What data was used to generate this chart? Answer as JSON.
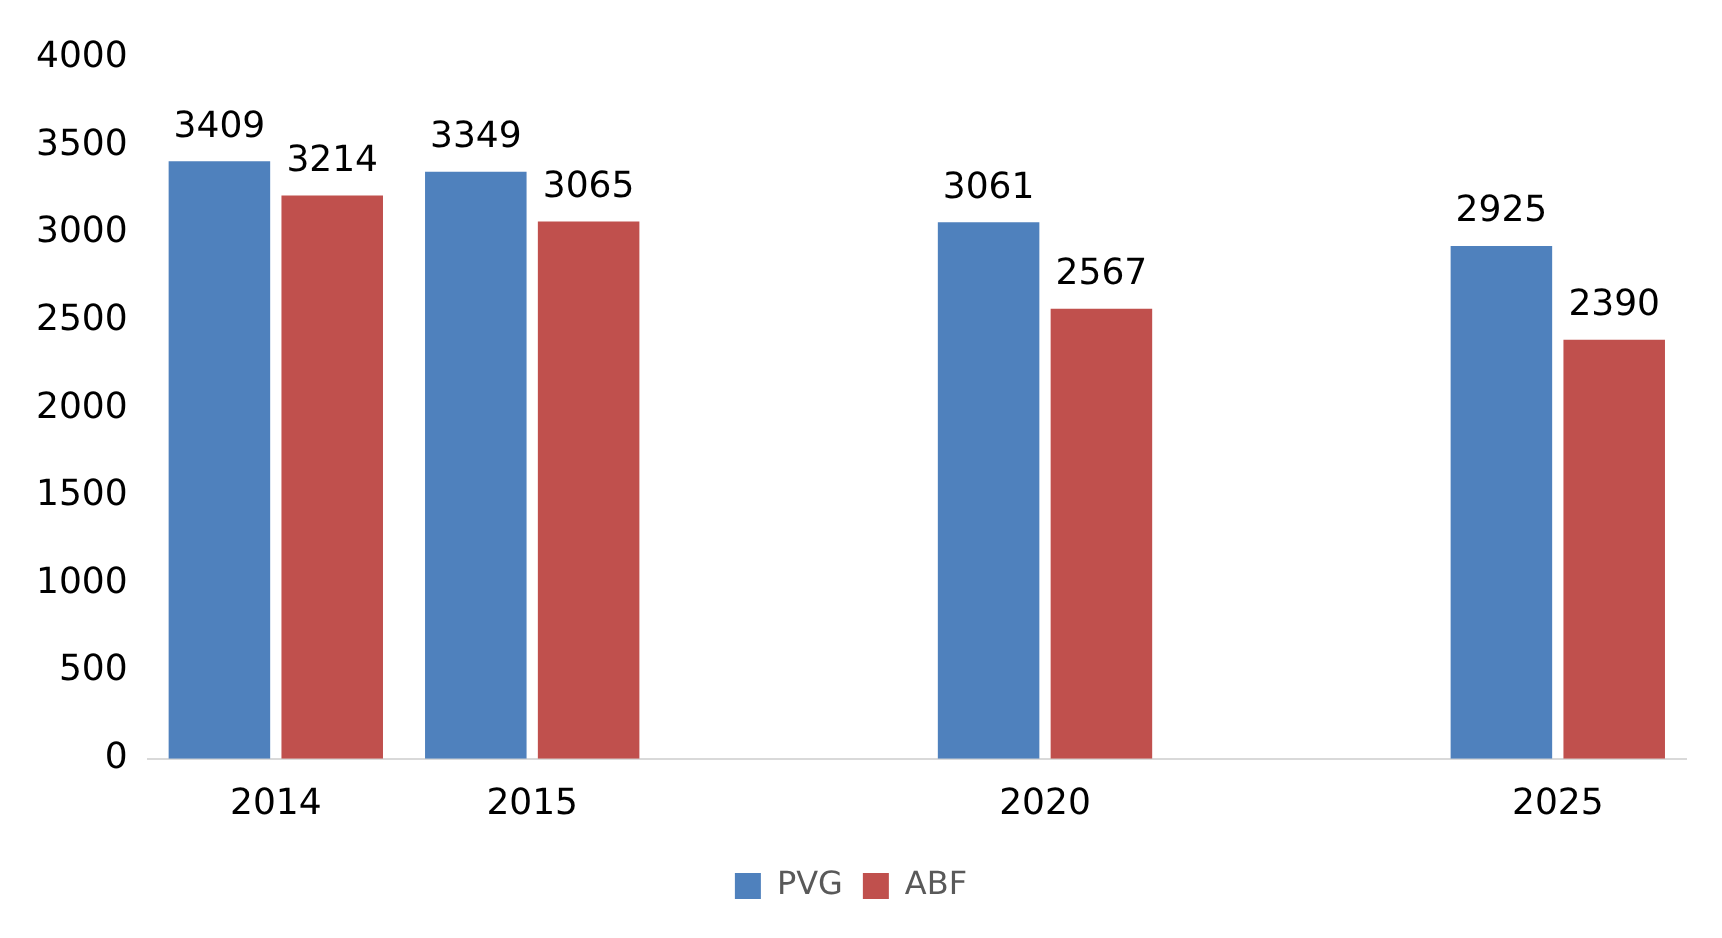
{
  "chart_data": {
    "type": "bar",
    "categories": [
      "2014",
      "2015",
      null,
      "2020",
      null,
      "2025"
    ],
    "series": [
      {
        "name": "PVG",
        "color": "#4f81bd",
        "values": [
          3409,
          3349,
          null,
          3061,
          null,
          2925
        ]
      },
      {
        "name": "ABF",
        "color": "#c0504d",
        "values": [
          3214,
          3065,
          null,
          2567,
          null,
          2390
        ]
      }
    ],
    "ylim": [
      0,
      4000
    ],
    "yticks": [
      0,
      500,
      1000,
      1500,
      2000,
      2500,
      3000,
      3500,
      4000
    ],
    "grid": false,
    "legend": "bottom",
    "data_labels": true
  }
}
